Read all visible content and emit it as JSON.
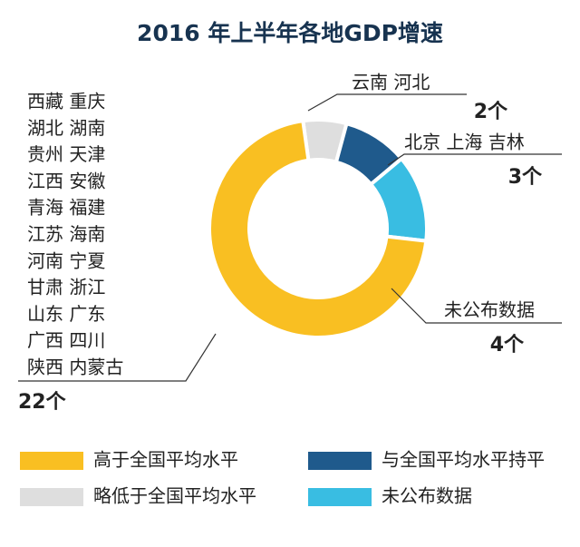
{
  "chart_data": {
    "type": "pie",
    "title": "2016 年上半年各地GDP增速",
    "categories": [
      "略低于全国平均水平",
      "与全国平均水平持平",
      "未公布数据",
      "高于全国平均水平"
    ],
    "values": [
      2,
      3,
      4,
      22
    ],
    "value_labels": [
      "2个",
      "3个",
      "4个",
      "22个"
    ],
    "colors": [
      "#dedede",
      "#1f5a8c",
      "#39bde2",
      "#f9bf22"
    ],
    "slice_notes": [
      [
        "云南 河北"
      ],
      [
        "北京 上海 吉林"
      ],
      [
        "未公布数据"
      ],
      [
        "西藏 重庆",
        "湖北 湖南",
        "贵州 天津",
        "江西 安徽",
        "青海 福建",
        "江苏 海南",
        "河南 宁夏",
        "甘肃 浙江",
        "山东 广东",
        "广西 四川",
        "陕西 内蒙古"
      ]
    ]
  }
}
